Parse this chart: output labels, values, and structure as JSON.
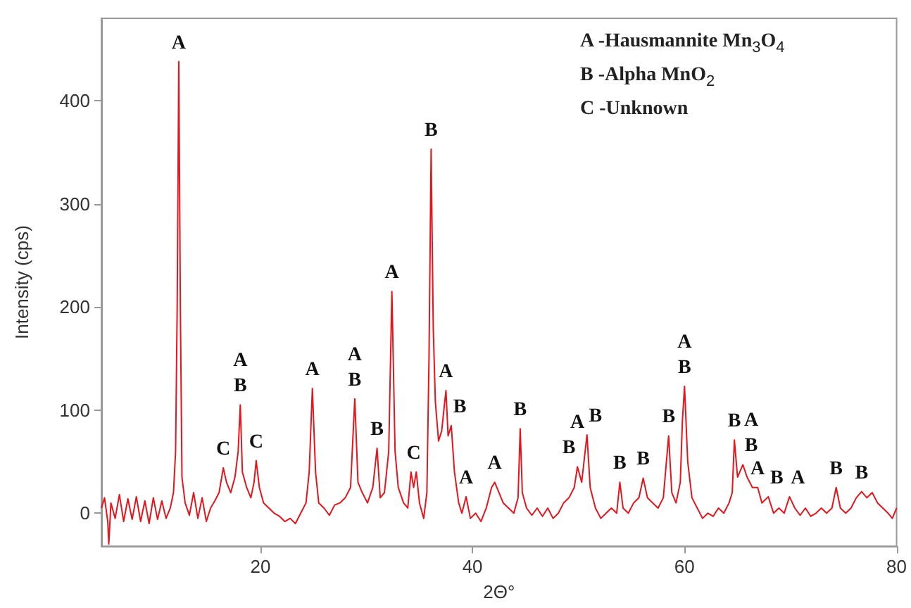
{
  "chart_data": {
    "type": "line",
    "xlabel": "2Θ°",
    "ylabel": "Intensity (cps)",
    "xlim": [
      5,
      80
    ],
    "xticks": [
      20,
      40,
      60,
      80
    ],
    "ylim": [
      -32,
      480
    ],
    "yticks": [
      0,
      100,
      200,
      300,
      400
    ],
    "grid": false,
    "series": [
      {
        "color": "#e8141b",
        "x": [
          5.0,
          5.3,
          5.6,
          5.7,
          5.9,
          6.3,
          6.7,
          7.1,
          7.5,
          7.9,
          8.3,
          8.7,
          9.1,
          9.5,
          9.9,
          10.3,
          10.7,
          11.1,
          11.5,
          11.8,
          12.0,
          12.15,
          12.3,
          12.45,
          12.6,
          12.9,
          13.3,
          13.7,
          14.1,
          14.5,
          14.9,
          15.3,
          15.7,
          16.1,
          16.5,
          16.8,
          17.2,
          17.6,
          17.9,
          18.1,
          18.3,
          18.7,
          19.1,
          19.4,
          19.6,
          19.9,
          20.3,
          20.8,
          21.3,
          21.8,
          22.3,
          22.8,
          23.3,
          23.8,
          24.3,
          24.6,
          24.9,
          25.2,
          25.5,
          26.0,
          26.5,
          27.0,
          27.5,
          28.0,
          28.5,
          28.9,
          29.2,
          29.6,
          30.1,
          30.6,
          31.0,
          31.3,
          31.7,
          32.1,
          32.4,
          32.7,
          33.0,
          33.5,
          33.9,
          34.2,
          34.45,
          34.7,
          35.0,
          35.4,
          35.7,
          35.9,
          36.1,
          36.3,
          36.5,
          36.8,
          37.1,
          37.3,
          37.5,
          37.7,
          38.0,
          38.3,
          38.7,
          39.0,
          39.4,
          39.8,
          40.3,
          40.8,
          41.3,
          41.8,
          42.1,
          42.5,
          42.9,
          43.4,
          43.9,
          44.3,
          44.5,
          44.7,
          45.1,
          45.6,
          46.1,
          46.6,
          47.1,
          47.6,
          48.1,
          48.6,
          49.1,
          49.6,
          49.9,
          50.3,
          50.8,
          51.1,
          51.6,
          52.1,
          52.6,
          53.1,
          53.6,
          53.9,
          54.2,
          54.7,
          55.2,
          55.7,
          56.1,
          56.5,
          57.0,
          57.5,
          58.0,
          58.5,
          58.8,
          59.2,
          59.6,
          59.8,
          60.0,
          60.3,
          60.7,
          61.2,
          61.7,
          62.2,
          62.7,
          63.2,
          63.7,
          64.2,
          64.5,
          64.7,
          65.0,
          65.5,
          65.9,
          66.4,
          66.9,
          67.3,
          67.9,
          68.4,
          68.9,
          69.4,
          69.9,
          70.4,
          70.9,
          71.4,
          71.9,
          72.4,
          72.9,
          73.4,
          73.9,
          74.3,
          74.7,
          75.2,
          75.7,
          76.2,
          76.7,
          77.2,
          77.7,
          78.2,
          78.7,
          79.2,
          79.6,
          80.0
        ],
        "values": [
          5,
          15,
          -8,
          -30,
          10,
          -5,
          18,
          -8,
          14,
          -6,
          16,
          -8,
          12,
          -10,
          15,
          -6,
          12,
          -5,
          5,
          20,
          60,
          200,
          438,
          200,
          35,
          10,
          -2,
          20,
          -5,
          15,
          -8,
          5,
          12,
          20,
          44,
          30,
          20,
          35,
          60,
          105,
          40,
          25,
          15,
          30,
          51,
          25,
          10,
          5,
          0,
          -3,
          -8,
          -5,
          -10,
          0,
          10,
          40,
          121,
          40,
          10,
          5,
          -2,
          8,
          10,
          15,
          25,
          111,
          30,
          20,
          10,
          25,
          63,
          15,
          20,
          60,
          215,
          60,
          25,
          10,
          5,
          40,
          25,
          40,
          10,
          -5,
          20,
          150,
          353,
          180,
          108,
          70,
          80,
          100,
          119,
          75,
          85,
          40,
          10,
          0,
          16,
          -5,
          0,
          -8,
          5,
          25,
          30,
          20,
          10,
          5,
          0,
          15,
          82,
          20,
          5,
          -2,
          5,
          -3,
          5,
          -5,
          0,
          10,
          15,
          25,
          45,
          30,
          76,
          25,
          5,
          -5,
          0,
          5,
          0,
          30,
          5,
          0,
          10,
          15,
          34,
          15,
          10,
          5,
          15,
          75,
          20,
          10,
          30,
          90,
          123,
          50,
          15,
          5,
          -5,
          0,
          -3,
          5,
          0,
          10,
          20,
          71,
          35,
          47,
          35,
          25,
          25,
          10,
          16,
          0,
          5,
          0,
          16,
          5,
          -2,
          5,
          -3,
          0,
          5,
          0,
          5,
          25,
          5,
          0,
          5,
          15,
          21,
          15,
          20,
          10,
          5,
          0,
          -5,
          5
        ]
      }
    ],
    "annotations": [
      "A -Hausmannite  Mn$_{3}$O$_{4}$",
      "B -Alpha  MnO$_{2}$",
      "C -Unknown",
      {
        "text": "A",
        "x": 12.3,
        "y": 438
      },
      {
        "text": "C",
        "x": 16.5,
        "y": 44
      },
      {
        "text": "B",
        "x": 18.1,
        "y": 105
      },
      {
        "text": "A",
        "x": 18.1,
        "y": 105
      },
      {
        "text": "C",
        "x": 19.6,
        "y": 51
      },
      {
        "text": "A",
        "x": 24.9,
        "y": 121
      },
      {
        "text": "B",
        "x": 28.9,
        "y": 111
      },
      {
        "text": "A",
        "x": 28.9,
        "y": 111
      },
      {
        "text": "B",
        "x": 31.0,
        "y": 63
      },
      {
        "text": "A",
        "x": 32.4,
        "y": 215
      },
      {
        "text": "C",
        "x": 34.45,
        "y": 40
      },
      {
        "text": "B",
        "x": 36.1,
        "y": 353
      },
      {
        "text": "A",
        "x": 37.5,
        "y": 119
      },
      {
        "text": "B",
        "x": 38.0,
        "y": 85
      },
      {
        "text": "A",
        "x": 39.4,
        "y": 16
      },
      {
        "text": "A",
        "x": 42.1,
        "y": 30
      },
      {
        "text": "B",
        "x": 44.5,
        "y": 82
      },
      {
        "text": "B",
        "x": 49.9,
        "y": 45
      },
      {
        "text": "A",
        "x": 49.9,
        "y": 45
      },
      {
        "text": "B",
        "x": 50.8,
        "y": 76
      },
      {
        "text": "B",
        "x": 53.9,
        "y": 30
      },
      {
        "text": "B",
        "x": 56.1,
        "y": 34
      },
      {
        "text": "B",
        "x": 58.5,
        "y": 75
      },
      {
        "text": "B",
        "x": 60.0,
        "y": 123
      },
      {
        "text": "A",
        "x": 60.0,
        "y": 123
      },
      {
        "text": "B",
        "x": 64.7,
        "y": 71
      },
      {
        "text": "B",
        "x": 65.5,
        "y": 47
      },
      {
        "text": "A",
        "x": 65.5,
        "y": 47
      },
      {
        "text": "A",
        "x": 66.9,
        "y": 25
      },
      {
        "text": "B",
        "x": 67.9,
        "y": 16
      },
      {
        "text": "A",
        "x": 69.9,
        "y": 16
      },
      {
        "text": "B",
        "x": 74.3,
        "y": 25
      },
      {
        "text": "B",
        "x": 76.7,
        "y": 21
      }
    ]
  }
}
